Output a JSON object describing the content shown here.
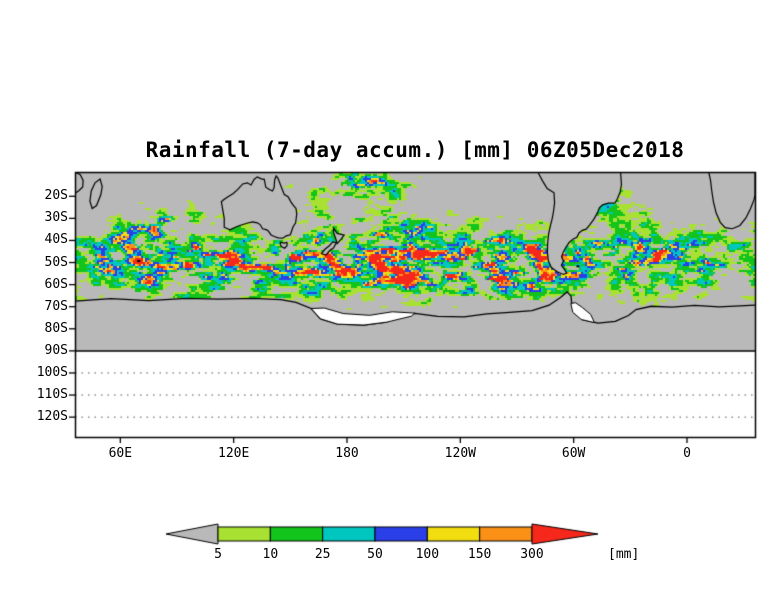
{
  "title": "Rainfall (7-day accum.) [mm] 06Z05Dec2018",
  "chart_data": {
    "type": "heatmap",
    "subtype": "geographic-precipitation-map",
    "title": "Rainfall (7-day accum.) [mm] 06Z05Dec2018",
    "projection": "lat-lon",
    "lon_range_deg_east": [
      36,
      396
    ],
    "lat_range": [
      -129,
      -9
    ],
    "grid": "dotted-below-90S",
    "x_axis": {
      "ticks": [
        {
          "lon": 60,
          "label": "60E"
        },
        {
          "lon": 120,
          "label": "120E"
        },
        {
          "lon": 180,
          "label": "180"
        },
        {
          "lon": 240,
          "label": "120W"
        },
        {
          "lon": 300,
          "label": "60W"
        },
        {
          "lon": 360,
          "label": "0"
        }
      ]
    },
    "y_axis": {
      "ticks": [
        {
          "lat": -20,
          "label": "20S"
        },
        {
          "lat": -30,
          "label": "30S"
        },
        {
          "lat": -40,
          "label": "40S"
        },
        {
          "lat": -50,
          "label": "50S"
        },
        {
          "lat": -60,
          "label": "60S"
        },
        {
          "lat": -70,
          "label": "70S"
        },
        {
          "lat": -80,
          "label": "80S"
        },
        {
          "lat": -90,
          "label": "90S"
        },
        {
          "lat": -100,
          "label": "100S"
        },
        {
          "lat": -110,
          "label": "110S"
        },
        {
          "lat": -120,
          "label": "120S"
        }
      ]
    },
    "colorbar": {
      "units_label": "[mm]",
      "levels": [
        5,
        10,
        25,
        50,
        100,
        150,
        300
      ],
      "below_min_color": "#b9b9b9",
      "segment_colors": [
        "#a9e132",
        "#12c41c",
        "#00c6c0",
        "#2b3fe8",
        "#f2de10",
        "#fb9016"
      ],
      "above_max_color": "#f5281b"
    },
    "no_data_color": "#b9b9b9",
    "land_color": "#b9b9b9",
    "ice_shelf_color": "#ffffff",
    "coast_color": "#000000",
    "rain_features": [
      {
        "name": "circumpolar-storm-track",
        "lat": -50,
        "lat_halfwidth": 17,
        "intensity": 1.0
      },
      {
        "name": "south-pacific-storm-cluster",
        "lon": 235,
        "lat": -52,
        "lon_halfwidth": 45,
        "lat_halfwidth": 12,
        "intensity": 0.4
      },
      {
        "name": "drake-passage-tierra-del-fuego",
        "lon": 293,
        "lat": -55,
        "lon_halfwidth": 13,
        "lat_halfwidth": 7,
        "intensity": 0.8
      },
      {
        "name": "south-atlantic-convergence-zone",
        "lon": 313,
        "lat": -21,
        "lon_halfwidth": 16,
        "lat_halfwidth": 9,
        "intensity": 0.9
      },
      {
        "name": "south-pacific-convergence-zone",
        "lon": 183,
        "lat": -14,
        "lon_halfwidth": 28,
        "lat_halfwidth": 7,
        "intensity": 0.95
      },
      {
        "name": "south-indian-subtropics",
        "lon": 78,
        "lat": -31,
        "lon_halfwidth": 30,
        "lat_halfwidth": 9,
        "intensity": 0.4
      },
      {
        "name": "tasman-sea",
        "lon": 160,
        "lat": -33,
        "lon_halfwidth": 14,
        "lat_halfwidth": 9,
        "intensity": 0.45
      },
      {
        "name": "south-pacific-subtropics",
        "lon": 207,
        "lat": -30,
        "lon_halfwidth": 24,
        "lat_halfwidth": 9,
        "intensity": 0.45
      },
      {
        "name": "southwest-atlantic",
        "lon": 333,
        "lat": -43,
        "lon_halfwidth": 24,
        "lat_halfwidth": 10,
        "intensity": 0.4
      }
    ],
    "coastlines": {
      "land": [
        {
          "name": "australia",
          "points": [
            [
              113.5,
              -22.5
            ],
            [
              115,
              -30
            ],
            [
              115,
              -34
            ],
            [
              118,
              -35.2
            ],
            [
              121.5,
              -33.8
            ],
            [
              124,
              -33
            ],
            [
              127.5,
              -32.1
            ],
            [
              130,
              -31.6
            ],
            [
              132.5,
              -32
            ],
            [
              134,
              -32.8
            ],
            [
              135.3,
              -34.7
            ],
            [
              137.2,
              -35.1
            ],
            [
              138.2,
              -35.6
            ],
            [
              139.8,
              -37.5
            ],
            [
              141.5,
              -38.2
            ],
            [
              143.5,
              -38.8
            ],
            [
              146,
              -39
            ],
            [
              147.8,
              -37.9
            ],
            [
              150,
              -37.4
            ],
            [
              151.4,
              -33.9
            ],
            [
              152.8,
              -32
            ],
            [
              153.4,
              -28
            ],
            [
              153,
              -25.5
            ],
            [
              151.5,
              -24
            ],
            [
              150.3,
              -22.5
            ],
            [
              148.8,
              -20.2
            ],
            [
              146.8,
              -19.2
            ],
            [
              146,
              -17.5
            ],
            [
              144.5,
              -14.2
            ],
            [
              143.5,
              -11.9
            ],
            [
              142.5,
              -10.8
            ],
            [
              141.7,
              -12.6
            ],
            [
              141.4,
              -16.2
            ],
            [
              140.5,
              -17.6
            ],
            [
              138.7,
              -16.8
            ],
            [
              137,
              -15.9
            ],
            [
              136.2,
              -12.3
            ],
            [
              134.6,
              -12.1
            ],
            [
              132.5,
              -11.2
            ],
            [
              130.8,
              -12.4
            ],
            [
              129.2,
              -14.9
            ],
            [
              127.2,
              -13.9
            ],
            [
              124.8,
              -14.4
            ],
            [
              122.2,
              -16.9
            ],
            [
              119.8,
              -18.7
            ],
            [
              116.8,
              -20.3
            ],
            [
              114.5,
              -21.7
            ]
          ]
        },
        {
          "name": "tasmania",
          "points": [
            [
              144.8,
              -40.8
            ],
            [
              146.6,
              -41.2
            ],
            [
              148.2,
              -40.9
            ],
            [
              148.3,
              -42.3
            ],
            [
              147,
              -43.5
            ],
            [
              145.3,
              -42.8
            ],
            [
              144.7,
              -41.7
            ]
          ]
        },
        {
          "name": "new-zealand-north-island",
          "points": [
            [
              172.8,
              -34.4
            ],
            [
              174.8,
              -36.8
            ],
            [
              178.5,
              -37.6
            ],
            [
              176.9,
              -39.4
            ],
            [
              174.8,
              -41.4
            ],
            [
              174.2,
              -39.7
            ],
            [
              172.9,
              -36.4
            ]
          ]
        },
        {
          "name": "new-zealand-south-island",
          "points": [
            [
              172.7,
              -40.6
            ],
            [
              174.3,
              -41.2
            ],
            [
              172.8,
              -43.4
            ],
            [
              171,
              -44.4
            ],
            [
              168.9,
              -46.6
            ],
            [
              166.5,
              -46
            ],
            [
              168.3,
              -44
            ],
            [
              170.5,
              -42.5
            ],
            [
              172.1,
              -41
            ]
          ]
        },
        {
          "name": "south-america",
          "points": [
            [
              281,
              -9
            ],
            [
              283.5,
              -13
            ],
            [
              286,
              -16.5
            ],
            [
              289.6,
              -18.4
            ],
            [
              289.9,
              -23
            ],
            [
              289.3,
              -27
            ],
            [
              288.6,
              -30.2
            ],
            [
              287.6,
              -33.6
            ],
            [
              286.7,
              -37.2
            ],
            [
              286.2,
              -41.5
            ],
            [
              286.1,
              -45.5
            ],
            [
              286.6,
              -49.3
            ],
            [
              288.2,
              -52.2
            ],
            [
              291.2,
              -54.2
            ],
            [
              294.6,
              -55.4
            ],
            [
              296.3,
              -54.7
            ],
            [
              295.2,
              -53.2
            ],
            [
              293.5,
              -51.2
            ],
            [
              294.6,
              -49.4
            ],
            [
              293.6,
              -47.4
            ],
            [
              294.5,
              -45.3
            ],
            [
              296,
              -43
            ],
            [
              297.6,
              -40.9
            ],
            [
              299.8,
              -39.3
            ],
            [
              301.7,
              -38.6
            ],
            [
              302.8,
              -36.6
            ],
            [
              304.6,
              -35.4
            ],
            [
              306.6,
              -34.9
            ],
            [
              308.4,
              -33.1
            ],
            [
              310.8,
              -30.2
            ],
            [
              312.6,
              -27.4
            ],
            [
              313.6,
              -25.2
            ],
            [
              315.3,
              -23.9
            ],
            [
              318.5,
              -23.1
            ],
            [
              321.9,
              -23
            ],
            [
              323.2,
              -21
            ],
            [
              324.6,
              -18
            ],
            [
              325.3,
              -14.8
            ],
            [
              325,
              -11
            ],
            [
              324.8,
              -9
            ]
          ]
        },
        {
          "name": "africa-east-coast",
          "points": [
            [
              36,
              -9
            ],
            [
              38.8,
              -10.2
            ],
            [
              40.3,
              -12.8
            ],
            [
              40.1,
              -15.8
            ],
            [
              38,
              -17.5
            ],
            [
              36,
              -18.6
            ]
          ]
        },
        {
          "name": "madagascar",
          "points": [
            [
              49.3,
              -12.2
            ],
            [
              50.4,
              -15.6
            ],
            [
              49.7,
              -19.2
            ],
            [
              47.4,
              -24.2
            ],
            [
              45.1,
              -25.5
            ],
            [
              43.9,
              -22.2
            ],
            [
              44.6,
              -17.6
            ],
            [
              46.6,
              -13.9
            ]
          ]
        },
        {
          "name": "southern-africa",
          "points": [
            [
              371.5,
              -9
            ],
            [
              372.5,
              -13
            ],
            [
              373.1,
              -17.5
            ],
            [
              374,
              -22.5
            ],
            [
              375.4,
              -27.5
            ],
            [
              377.6,
              -31.8
            ],
            [
              380.2,
              -34.2
            ],
            [
              384,
              -34.7
            ],
            [
              388,
              -33.2
            ],
            [
              391.2,
              -29.8
            ],
            [
              393.6,
              -25.6
            ],
            [
              395.5,
              -21.5
            ],
            [
              396,
              -19.5
            ],
            [
              396,
              -9
            ]
          ]
        }
      ],
      "antarctica": [
        [
          36,
          -67.5
        ],
        [
          55,
          -66.3
        ],
        [
          75,
          -67.2
        ],
        [
          95,
          -66.2
        ],
        [
          112,
          -66.6
        ],
        [
          130,
          -66.2
        ],
        [
          145,
          -66.8
        ],
        [
          153,
          -68
        ],
        [
          161,
          -70.8
        ],
        [
          166,
          -75.5
        ],
        [
          175,
          -77.9
        ],
        [
          189,
          -78.3
        ],
        [
          201,
          -77
        ],
        [
          208,
          -74
        ],
        [
          216,
          -73
        ],
        [
          228,
          -74.4
        ],
        [
          242,
          -74.6
        ],
        [
          254,
          -73.2
        ],
        [
          266,
          -72.6
        ],
        [
          278,
          -71.8
        ],
        [
          287,
          -69.3
        ],
        [
          293,
          -65.8
        ],
        [
          296.5,
          -63.3
        ],
        [
          298.6,
          -65.2
        ],
        [
          299,
          -69
        ],
        [
          300.5,
          -72.8
        ],
        [
          305,
          -76
        ],
        [
          313,
          -77.4
        ],
        [
          322,
          -76.6
        ],
        [
          329,
          -74
        ],
        [
          333,
          -71.3
        ],
        [
          341,
          -69.8
        ],
        [
          352,
          -70.2
        ],
        [
          364,
          -69.4
        ],
        [
          377,
          -70.1
        ],
        [
          388,
          -69.6
        ],
        [
          396,
          -69.3
        ]
      ],
      "ice_shelves": [
        {
          "name": "ross-ice-shelf",
          "points": [
            [
              161,
              -70.8
            ],
            [
              166,
              -75.5
            ],
            [
              175,
              -77.9
            ],
            [
              189,
              -78.3
            ],
            [
              201,
              -77
            ],
            [
              214,
              -74.3
            ],
            [
              216,
              -72.9
            ],
            [
              204,
              -72.3
            ],
            [
              192,
              -73.9
            ],
            [
              178,
              -73.1
            ],
            [
              168,
              -70.6
            ]
          ]
        },
        {
          "name": "weddell-ice-shelf",
          "points": [
            [
              298.5,
              -68.5
            ],
            [
              299.5,
              -72.5
            ],
            [
              304,
              -75.8
            ],
            [
              311,
              -77.2
            ],
            [
              309,
              -73.5
            ],
            [
              304.5,
              -70.3
            ],
            [
              301,
              -68.2
            ]
          ]
        }
      ],
      "islands_points": [
        {
          "name": "falkland-islands",
          "lon": 302,
          "lat": -51.7
        },
        {
          "name": "kerguelen",
          "lon": 69.5,
          "lat": -49.3
        }
      ]
    }
  }
}
